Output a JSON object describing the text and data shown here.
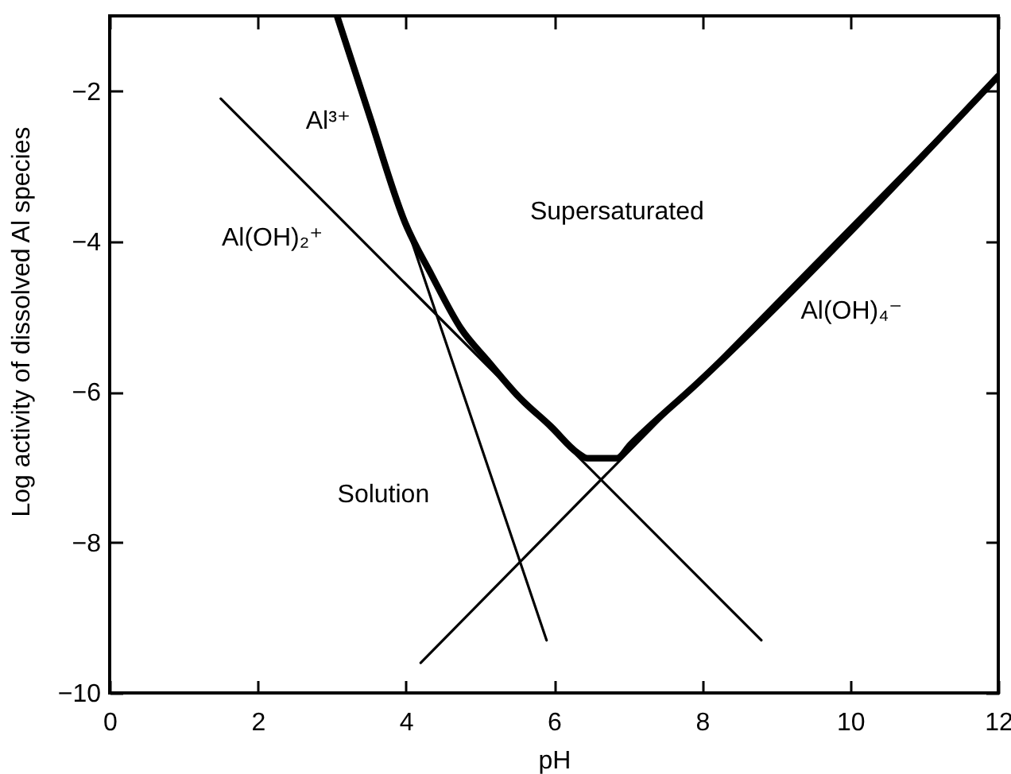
{
  "chart_data": {
    "type": "line",
    "xlabel": "pH",
    "ylabel": "Log activity of dissolved Al species",
    "xlim": [
      0,
      12
    ],
    "ylim": [
      -10,
      -1
    ],
    "xticks": [
      0,
      2,
      4,
      6,
      8,
      10,
      12
    ],
    "yticks": [
      -10,
      -8,
      -6,
      -4,
      -2
    ],
    "grid": false,
    "legend": false,
    "marker": "none",
    "line_style": "solid",
    "series": [
      {
        "name": "Al³⁺",
        "color": "#000000",
        "x": [
          3.05,
          5.9
        ],
        "values": [
          -1.0,
          -9.3
        ]
      },
      {
        "name": "Al(OH)₂⁺",
        "color": "#000000",
        "x": [
          1.5,
          8.8
        ],
        "values": [
          -2.1,
          -9.3
        ]
      },
      {
        "name": "Al(OH)₄⁻",
        "color": "#000000",
        "x": [
          4.2,
          12
        ],
        "values": [
          -9.6,
          -1.8
        ]
      },
      {
        "color": "#000000",
        "x": [
          3.07,
          3.5,
          3.99,
          4.35,
          4.74,
          5.1,
          5.53,
          5.96,
          6.32,
          6.45,
          6.85,
          7.03,
          7.96,
          12
        ],
        "values": [
          -1.0,
          -2.3,
          -3.75,
          -4.45,
          -5.15,
          -5.58,
          -6.07,
          -6.46,
          -6.81,
          -6.88,
          -6.88,
          -6.7,
          -5.86,
          -1.8
        ]
      }
    ],
    "annotations": [
      "Supersaturated",
      "Solution"
    ]
  }
}
